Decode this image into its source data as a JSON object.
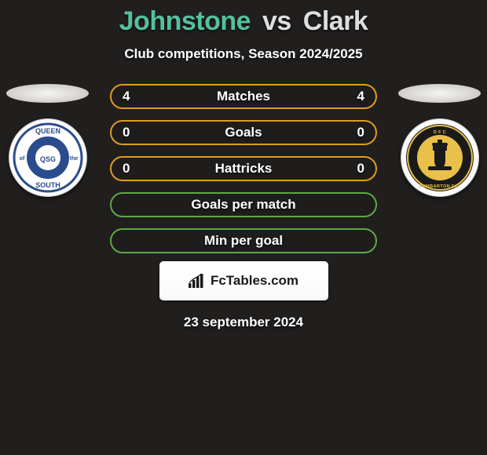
{
  "title": {
    "player1": "Johnstone",
    "separator": "vs",
    "player2": "Clark"
  },
  "subtitle": "Club competitions, Season 2024/2025",
  "stats_rows": [
    {
      "left": "4",
      "label": "Matches",
      "right": "4",
      "border_color": "#e09a22"
    },
    {
      "left": "0",
      "label": "Goals",
      "right": "0",
      "border_color": "#e09a22"
    },
    {
      "left": "0",
      "label": "Hattricks",
      "right": "0",
      "border_color": "#e09a22"
    },
    {
      "left": "",
      "label": "Goals per match",
      "right": "",
      "border_color": "#5fa845"
    },
    {
      "left": "",
      "label": "Min per goal",
      "right": "",
      "border_color": "#5fa845"
    }
  ],
  "branding_text": "FcTables.com",
  "date": "23 september 2024",
  "clubs": {
    "left": {
      "name": "queen-of-the-south",
      "ring_text_top": "QUEEN",
      "ring_text_left": "of",
      "ring_text_right": "the",
      "ring_text_bottom": "SOUTH"
    },
    "right": {
      "name": "dumbarton-fc",
      "ring_text": "DUMBARTON F.C."
    }
  },
  "colors": {
    "background": "#211f1e",
    "accent_teal": "#54c0a0",
    "text_light": "#dedede",
    "text_white": "#ffffff"
  }
}
